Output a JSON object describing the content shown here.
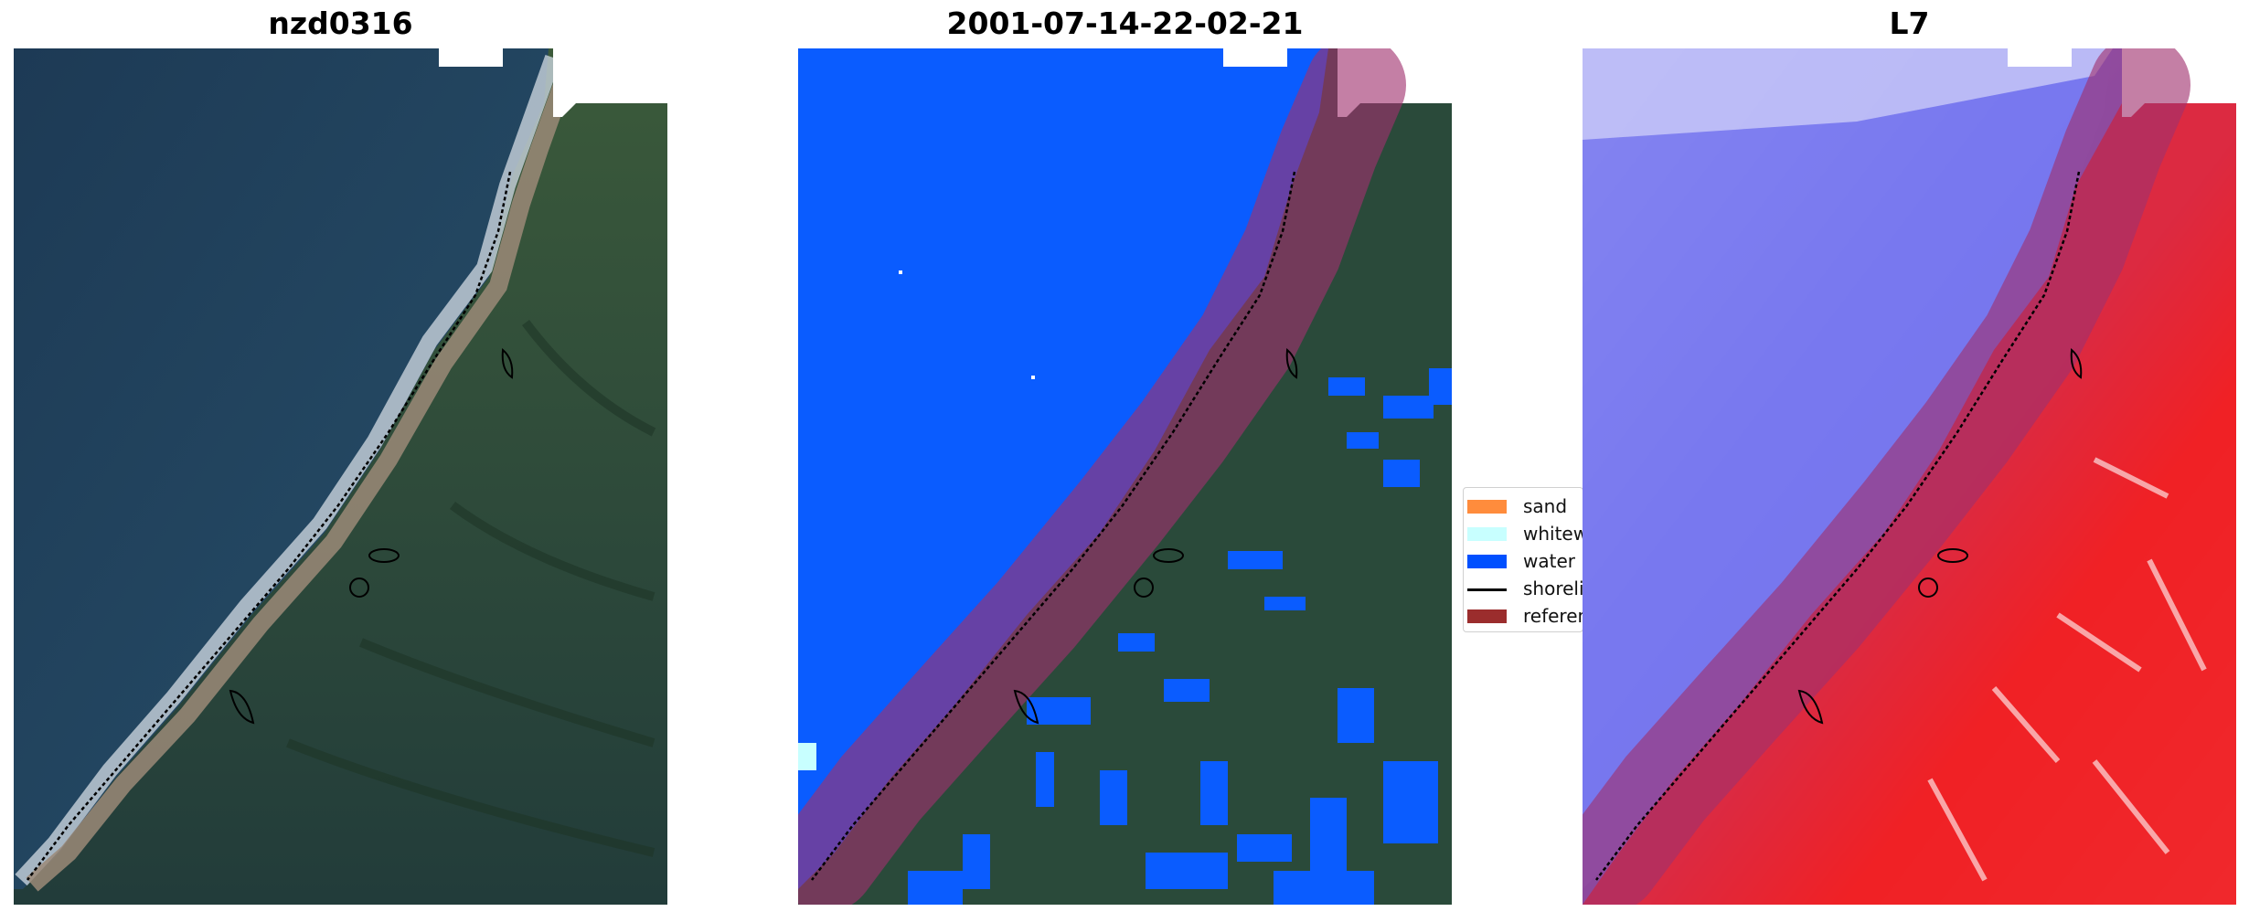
{
  "panels": [
    {
      "title": "nzd0316"
    },
    {
      "title": "2001-07-14-22-02-21"
    },
    {
      "title": "L7"
    }
  ],
  "legend": {
    "items": [
      {
        "label": "sand",
        "color": "#ff8c3c",
        "kind": "patch"
      },
      {
        "label": "whitewater",
        "color": "#c8ffff",
        "kind": "patch"
      },
      {
        "label": "water",
        "color": "#0050ff",
        "kind": "patch"
      },
      {
        "label": "shoreline",
        "color": "#000000",
        "kind": "line"
      },
      {
        "label": "reference shoreline buffer",
        "color": "#9b2d2d",
        "kind": "patch"
      }
    ]
  },
  "colors": {
    "sea": "#21405a",
    "land": "#2b4a35",
    "beach": "#9a8a76",
    "surf": "#cfd8e2",
    "water_class": "#0a5cff",
    "buffer_overlay": "#a0306e",
    "index_blue": "#7b7bf0",
    "index_red": "#f01e23"
  }
}
